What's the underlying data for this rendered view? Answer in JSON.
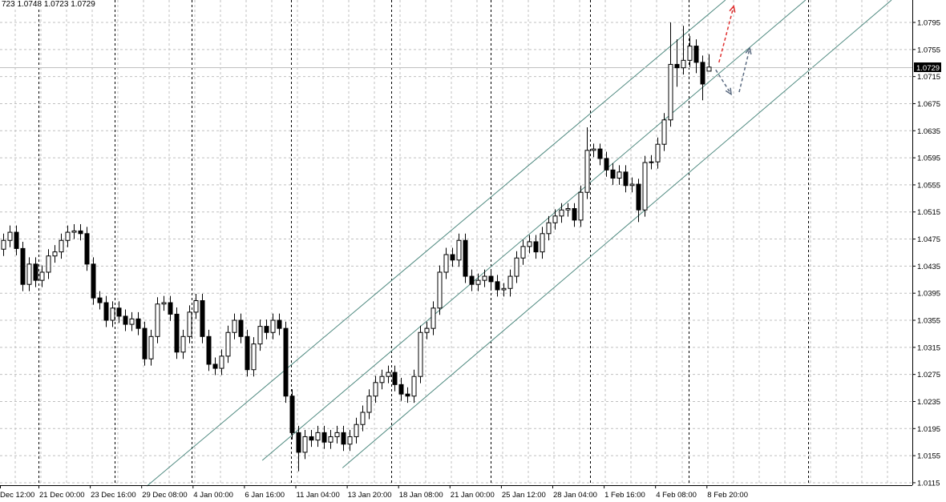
{
  "ohlc_readout": "723 1.0748 1.0723 1.0729",
  "current_price_label": "1.0729",
  "colors": {
    "background": "#ffffff",
    "candle_outline": "#000000",
    "bull_body": "#ffffff",
    "bear_body": "#000000",
    "grid": "#c0c0c0",
    "period_separator": "#000000",
    "channel": "#4f8a80",
    "price_line": "#c0c0c0",
    "arrow_up_red": "#e03030",
    "arrow_grey": "#5a6a80"
  },
  "chart_data": {
    "type": "candlestick",
    "grid": true,
    "ylim": [
      1.0115,
      1.0795
    ],
    "y_ticks": [
      "1.0795",
      "1.0755",
      "1.0715",
      "1.0675",
      "1.0635",
      "1.0595",
      "1.0555",
      "1.0515",
      "1.0475",
      "1.0435",
      "1.0395",
      "1.0355",
      "1.0315",
      "1.0275",
      "1.0235",
      "1.0195",
      "1.0155",
      "1.0115"
    ],
    "x_ticks": [
      "Dec 12:00",
      "21 Dec 00:00",
      "23 Dec 16:00",
      "29 Dec 08:00",
      "4 Jan 00:00",
      "6 Jan 16:00",
      "11 Jan 04:00",
      "13 Jan 20:00",
      "18 Jan 08:00",
      "21 Jan 00:00",
      "25 Jan 12:00",
      "28 Jan 04:00",
      "1 Feb 16:00",
      "4 Feb 08:00",
      "8 Feb 20:00"
    ],
    "last_price": 1.0729,
    "candles_ohlc": [
      [
        1.046,
        1.0483,
        1.045,
        1.0473
      ],
      [
        1.0473,
        1.0495,
        1.0463,
        1.0485
      ],
      [
        1.0485,
        1.0495,
        1.0451,
        1.0461
      ],
      [
        1.0461,
        1.0471,
        1.0398,
        1.0408
      ],
      [
        1.0408,
        1.0448,
        1.0398,
        1.0438
      ],
      [
        1.0438,
        1.0448,
        1.0404,
        1.0414
      ],
      [
        1.0414,
        1.0436,
        1.0404,
        1.0426
      ],
      [
        1.0426,
        1.046,
        1.0416,
        1.045
      ],
      [
        1.045,
        1.0466,
        1.044,
        1.0456
      ],
      [
        1.0456,
        1.0483,
        1.0446,
        1.0473
      ],
      [
        1.0473,
        1.0495,
        1.0463,
        1.0485
      ],
      [
        1.0485,
        1.0497,
        1.0475,
        1.0487
      ],
      [
        1.0487,
        1.0497,
        1.0473,
        1.0483
      ],
      [
        1.0483,
        1.0493,
        1.0428,
        1.0438
      ],
      [
        1.0438,
        1.0448,
        1.0378,
        1.0388
      ],
      [
        1.0388,
        1.0398,
        1.0371,
        1.0381
      ],
      [
        1.0381,
        1.0391,
        1.0345,
        1.0355
      ],
      [
        1.0355,
        1.0383,
        1.0345,
        1.0373
      ],
      [
        1.0373,
        1.0383,
        1.0351,
        1.0361
      ],
      [
        1.0361,
        1.0371,
        1.0339,
        1.0349
      ],
      [
        1.0349,
        1.0367,
        1.0339,
        1.0357
      ],
      [
        1.0357,
        1.0367,
        1.0333,
        1.0343
      ],
      [
        1.0343,
        1.0353,
        1.0288,
        1.0298
      ],
      [
        1.0298,
        1.0341,
        1.0288,
        1.0331
      ],
      [
        1.0331,
        1.0389,
        1.0321,
        1.0379
      ],
      [
        1.0379,
        1.0391,
        1.0369,
        1.0381
      ],
      [
        1.0381,
        1.0391,
        1.0354,
        1.0364
      ],
      [
        1.0364,
        1.0374,
        1.0298,
        1.0308
      ],
      [
        1.0308,
        1.0341,
        1.0298,
        1.0331
      ],
      [
        1.0331,
        1.0377,
        1.0321,
        1.0367
      ],
      [
        1.0367,
        1.0394,
        1.0357,
        1.0384
      ],
      [
        1.0384,
        1.0394,
        1.0321,
        1.0331
      ],
      [
        1.0331,
        1.0341,
        1.028,
        1.029
      ],
      [
        1.029,
        1.03,
        1.0274,
        1.0284
      ],
      [
        1.0284,
        1.0312,
        1.0274,
        1.0302
      ],
      [
        1.0302,
        1.0347,
        1.0292,
        1.0337
      ],
      [
        1.0337,
        1.0365,
        1.0327,
        1.0355
      ],
      [
        1.0355,
        1.0365,
        1.0321,
        1.0331
      ],
      [
        1.0331,
        1.0341,
        1.0272,
        1.0282
      ],
      [
        1.0282,
        1.033,
        1.0272,
        1.032
      ],
      [
        1.032,
        1.0356,
        1.031,
        1.0346
      ],
      [
        1.0346,
        1.0356,
        1.0327,
        1.0337
      ],
      [
        1.0337,
        1.0365,
        1.0327,
        1.0355
      ],
      [
        1.0355,
        1.0365,
        1.0333,
        1.0343
      ],
      [
        1.0343,
        1.0353,
        1.0233,
        1.0243
      ],
      [
        1.0243,
        1.0253,
        1.0179,
        1.0189
      ],
      [
        1.0189,
        1.0199,
        1.0132,
        1.016
      ],
      [
        1.016,
        1.0193,
        1.015,
        1.0183
      ],
      [
        1.0183,
        1.0193,
        1.0168,
        1.0178
      ],
      [
        1.0178,
        1.0199,
        1.0168,
        1.0189
      ],
      [
        1.0189,
        1.0199,
        1.0165,
        1.0175
      ],
      [
        1.0175,
        1.0193,
        1.0165,
        1.0183
      ],
      [
        1.0183,
        1.0199,
        1.0173,
        1.0189
      ],
      [
        1.0189,
        1.0199,
        1.0162,
        1.0172
      ],
      [
        1.0172,
        1.0193,
        1.0162,
        1.0183
      ],
      [
        1.0183,
        1.0211,
        1.0173,
        1.0201
      ],
      [
        1.0201,
        1.0229,
        1.0191,
        1.0219
      ],
      [
        1.0219,
        1.0253,
        1.0209,
        1.0243
      ],
      [
        1.0243,
        1.0273,
        1.0233,
        1.0263
      ],
      [
        1.0263,
        1.0282,
        1.0253,
        1.0272
      ],
      [
        1.0272,
        1.0288,
        1.0262,
        1.0278
      ],
      [
        1.0278,
        1.0288,
        1.025,
        1.026
      ],
      [
        1.026,
        1.027,
        1.0236,
        1.0246
      ],
      [
        1.0246,
        1.0256,
        1.0233,
        1.0243
      ],
      [
        1.0243,
        1.0282,
        1.0233,
        1.0272
      ],
      [
        1.0272,
        1.0347,
        1.0262,
        1.0337
      ],
      [
        1.0337,
        1.0353,
        1.0327,
        1.0343
      ],
      [
        1.0343,
        1.0383,
        1.0333,
        1.0373
      ],
      [
        1.0373,
        1.0436,
        1.0363,
        1.0426
      ],
      [
        1.0426,
        1.0462,
        1.0416,
        1.0452
      ],
      [
        1.0452,
        1.0462,
        1.0434,
        1.0444
      ],
      [
        1.0444,
        1.0483,
        1.0434,
        1.0473
      ],
      [
        1.0473,
        1.0483,
        1.041,
        1.042
      ],
      [
        1.042,
        1.043,
        1.0398,
        1.0408
      ],
      [
        1.0408,
        1.0424,
        1.0398,
        1.0414
      ],
      [
        1.0414,
        1.043,
        1.0404,
        1.042
      ],
      [
        1.042,
        1.043,
        1.0402,
        1.0412
      ],
      [
        1.0412,
        1.0422,
        1.039,
        1.04
      ],
      [
        1.04,
        1.041,
        1.039,
        1.0402
      ],
      [
        1.0402,
        1.043,
        1.039,
        1.042
      ],
      [
        1.042,
        1.0457,
        1.041,
        1.0447
      ],
      [
        1.0447,
        1.0474,
        1.0437,
        1.0464
      ],
      [
        1.0464,
        1.0481,
        1.0454,
        1.0471
      ],
      [
        1.0471,
        1.0481,
        1.0446,
        1.0456
      ],
      [
        1.0456,
        1.0493,
        1.0446,
        1.0483
      ],
      [
        1.0483,
        1.0509,
        1.0473,
        1.0499
      ],
      [
        1.0499,
        1.0519,
        1.0489,
        1.0509
      ],
      [
        1.0509,
        1.0528,
        1.0499,
        1.0518
      ],
      [
        1.0518,
        1.0528,
        1.0508,
        1.052
      ],
      [
        1.052,
        1.0528,
        1.0493,
        1.0503
      ],
      [
        1.0503,
        1.0554,
        1.0493,
        1.0544
      ],
      [
        1.0544,
        1.064,
        1.0534,
        1.0606
      ],
      [
        1.0606,
        1.0616,
        1.0596,
        1.0608
      ],
      [
        1.0608,
        1.0616,
        1.0584,
        1.0594
      ],
      [
        1.0594,
        1.0604,
        1.0567,
        1.0577
      ],
      [
        1.0577,
        1.0587,
        1.0555,
        1.0565
      ],
      [
        1.0565,
        1.0584,
        1.0555,
        1.0574
      ],
      [
        1.0574,
        1.0584,
        1.0544,
        1.0554
      ],
      [
        1.0554,
        1.0566,
        1.0544,
        1.0556
      ],
      [
        1.0556,
        1.0564,
        1.05,
        1.0518
      ],
      [
        1.0518,
        1.0598,
        1.0508,
        1.0588
      ],
      [
        1.0588,
        1.0599,
        1.0578,
        1.0589
      ],
      [
        1.0589,
        1.0625,
        1.0579,
        1.0615
      ],
      [
        1.0615,
        1.0661,
        1.0605,
        1.0651
      ],
      [
        1.0651,
        1.0795,
        1.0641,
        1.0733
      ],
      [
        1.0733,
        1.077,
        1.07,
        1.0728
      ],
      [
        1.0728,
        1.079,
        1.0718,
        1.0739
      ],
      [
        1.0739,
        1.0775,
        1.0729,
        1.076
      ],
      [
        1.076,
        1.077,
        1.072,
        1.0736
      ],
      [
        1.0736,
        1.0746,
        1.068,
        1.0704
      ],
      [
        1.0723,
        1.0748,
        1.0723,
        1.0729
      ]
    ],
    "channel_lines": [
      {
        "from": {
          "bar": 22.4,
          "price": 1.011
        },
        "to": {
          "bar": 112.6,
          "price": 1.0828
        }
      },
      {
        "from": {
          "bar": 40.4,
          "price": 1.0148
        },
        "to": {
          "bar": 125.1,
          "price": 1.0828
        }
      },
      {
        "from": {
          "bar": 52.9,
          "price": 1.0137
        },
        "to": {
          "bar": 138.5,
          "price": 1.0828
        }
      }
    ],
    "arrows": [
      {
        "color": "red",
        "from": {
          "bar": 111.6,
          "price": 1.0736
        },
        "to": {
          "bar": 113.9,
          "price": 1.0819
        }
      },
      {
        "color": "grey",
        "from": {
          "bar": 111.1,
          "price": 1.0725
        },
        "to": {
          "bar": 113.5,
          "price": 1.0689
        }
      },
      {
        "color": "grey",
        "from": {
          "bar": 114.75,
          "price": 1.0692
        },
        "to": {
          "bar": 116.4,
          "price": 1.0757
        }
      }
    ]
  }
}
